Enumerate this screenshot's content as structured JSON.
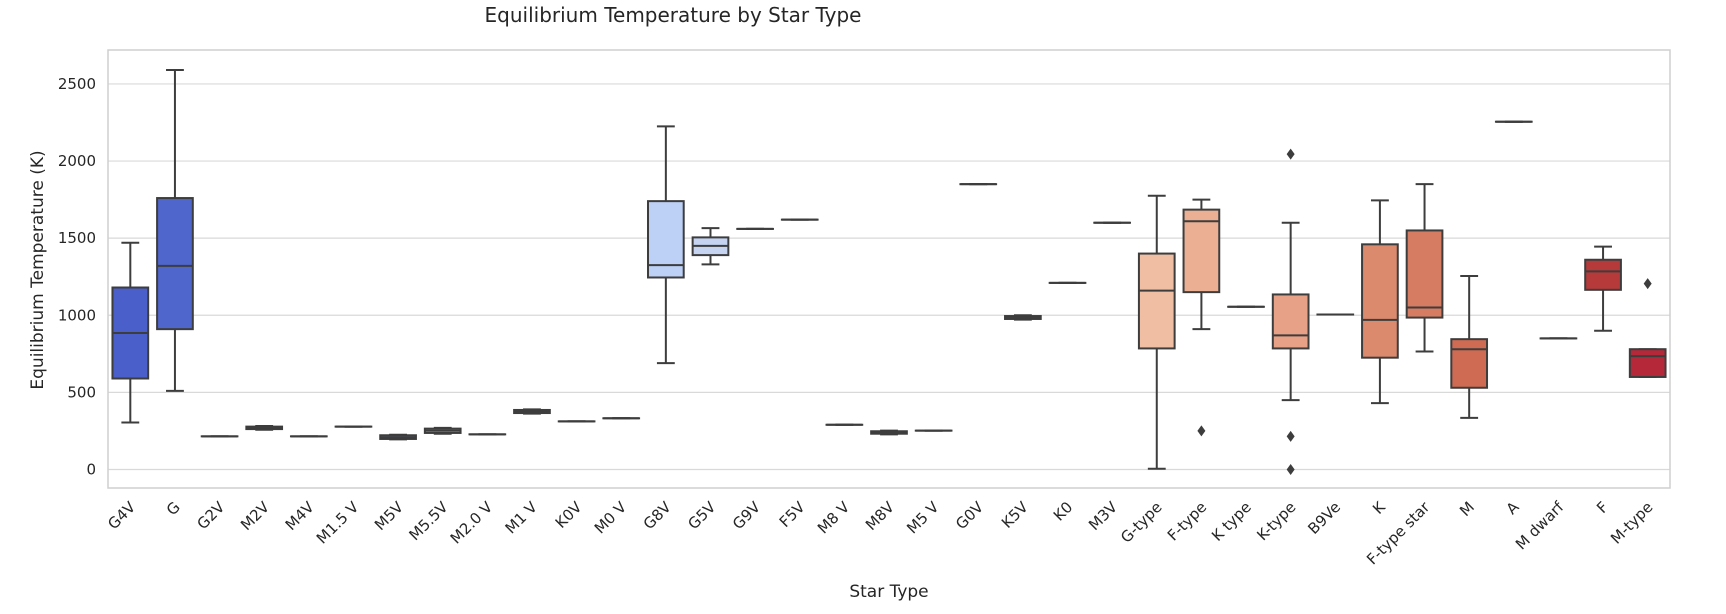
{
  "chart_data": {
    "type": "box",
    "title": "Equilibrium Temperature by Star Type",
    "xlabel": "Star Type",
    "ylabel": "Equilibrium Temperature (K)",
    "ylim": [
      -120,
      2720
    ],
    "yticks": [
      0,
      500,
      1000,
      1500,
      2000,
      2500
    ],
    "grid": "horizontal",
    "categories": [
      "G4V",
      "G",
      "G2V",
      "M2V",
      "M4V",
      "M1.5 V",
      "M5V",
      "M5.5V",
      "M2.0 V",
      "M1 V",
      "K0V",
      "M0 V",
      "G8V",
      "G5V",
      "G9V",
      "F5V",
      "M8 V",
      "M8V",
      "M5 V",
      "G0V",
      "K5V",
      "K0",
      "M3V",
      "G-type",
      "F-type",
      "K type",
      "K-type",
      "B9Ve",
      "K",
      "F-type star",
      "M",
      "A",
      "M dwarf",
      "F",
      "M-type"
    ],
    "colors": [
      "#4a5fc9",
      "#4f66cd",
      "#5a73d6",
      "#6580de",
      "#718de5",
      "#7d99ea",
      "#8aa6ef",
      "#97b1f3",
      "#a3bcf5",
      "#b0c6f6",
      "#bdcff6",
      "#c0cff3",
      "#bdd0f5",
      "#c6d4f2",
      "#cdd7ef",
      "#d4dbe9",
      "#dadde3",
      "#e2dbd6",
      "#e8d6ca",
      "#edcfbd",
      "#efc7b0",
      "#f0bfa2",
      "#efb496",
      "#efbea3",
      "#ebb093",
      "#e9a486",
      "#e6a186",
      "#e2957a",
      "#dc8a6e",
      "#d67c63",
      "#cf6b53",
      "#c65a47",
      "#bd483c",
      "#b73a3a",
      "#b5283a"
    ],
    "boxes": [
      {
        "min": 305,
        "q1": 590,
        "median": 885,
        "q3": 1180,
        "max": 1470,
        "outliers": []
      },
      {
        "min": 510,
        "q1": 910,
        "median": 1320,
        "q3": 1760,
        "max": 2590,
        "outliers": []
      },
      {
        "min": 215,
        "q1": 215,
        "median": 215,
        "q3": 215,
        "max": 215,
        "outliers": []
      },
      {
        "min": 258,
        "q1": 262,
        "median": 270,
        "q3": 278,
        "max": 282,
        "outliers": []
      },
      {
        "min": 215,
        "q1": 215,
        "median": 215,
        "q3": 215,
        "max": 215,
        "outliers": []
      },
      {
        "min": 278,
        "q1": 278,
        "median": 278,
        "q3": 278,
        "max": 278,
        "outliers": []
      },
      {
        "min": 195,
        "q1": 198,
        "median": 210,
        "q3": 222,
        "max": 225,
        "outliers": []
      },
      {
        "min": 232,
        "q1": 237,
        "median": 252,
        "q3": 265,
        "max": 270,
        "outliers": []
      },
      {
        "min": 228,
        "q1": 228,
        "median": 228,
        "q3": 228,
        "max": 228,
        "outliers": []
      },
      {
        "min": 362,
        "q1": 366,
        "median": 376,
        "q3": 386,
        "max": 390,
        "outliers": []
      },
      {
        "min": 312,
        "q1": 312,
        "median": 312,
        "q3": 312,
        "max": 312,
        "outliers": []
      },
      {
        "min": 332,
        "q1": 332,
        "median": 332,
        "q3": 332,
        "max": 332,
        "outliers": []
      },
      {
        "min": 690,
        "q1": 1245,
        "median": 1325,
        "q3": 1740,
        "max": 2225,
        "outliers": []
      },
      {
        "min": 1330,
        "q1": 1390,
        "median": 1450,
        "q3": 1505,
        "max": 1565,
        "outliers": []
      },
      {
        "min": 1560,
        "q1": 1560,
        "median": 1560,
        "q3": 1560,
        "max": 1560,
        "outliers": []
      },
      {
        "min": 1620,
        "q1": 1620,
        "median": 1620,
        "q3": 1620,
        "max": 1620,
        "outliers": []
      },
      {
        "min": 290,
        "q1": 290,
        "median": 290,
        "q3": 290,
        "max": 290,
        "outliers": []
      },
      {
        "min": 228,
        "q1": 232,
        "median": 240,
        "q3": 248,
        "max": 252,
        "outliers": []
      },
      {
        "min": 252,
        "q1": 252,
        "median": 252,
        "q3": 252,
        "max": 252,
        "outliers": []
      },
      {
        "min": 1850,
        "q1": 1850,
        "median": 1850,
        "q3": 1850,
        "max": 1850,
        "outliers": []
      },
      {
        "min": 972,
        "q1": 976,
        "median": 985,
        "q3": 995,
        "max": 1000,
        "outliers": []
      },
      {
        "min": 1210,
        "q1": 1210,
        "median": 1210,
        "q3": 1210,
        "max": 1210,
        "outliers": []
      },
      {
        "min": 1600,
        "q1": 1600,
        "median": 1600,
        "q3": 1600,
        "max": 1600,
        "outliers": []
      },
      {
        "min": 5,
        "q1": 785,
        "median": 1160,
        "q3": 1400,
        "max": 1775,
        "outliers": []
      },
      {
        "min": 910,
        "q1": 1150,
        "median": 1610,
        "q3": 1685,
        "max": 1750,
        "outliers": [
          250
        ]
      },
      {
        "min": 1055,
        "q1": 1055,
        "median": 1055,
        "q3": 1055,
        "max": 1055,
        "outliers": []
      },
      {
        "min": 450,
        "q1": 785,
        "median": 870,
        "q3": 1135,
        "max": 1600,
        "outliers": [
          2045,
          215,
          0
        ]
      },
      {
        "min": 1005,
        "q1": 1005,
        "median": 1005,
        "q3": 1005,
        "max": 1005,
        "outliers": []
      },
      {
        "min": 430,
        "q1": 725,
        "median": 970,
        "q3": 1460,
        "max": 1745,
        "outliers": []
      },
      {
        "min": 765,
        "q1": 985,
        "median": 1050,
        "q3": 1550,
        "max": 1850,
        "outliers": []
      },
      {
        "min": 335,
        "q1": 530,
        "median": 780,
        "q3": 845,
        "max": 1255,
        "outliers": []
      },
      {
        "min": 2255,
        "q1": 2255,
        "median": 2255,
        "q3": 2255,
        "max": 2255,
        "outliers": []
      },
      {
        "min": 850,
        "q1": 850,
        "median": 850,
        "q3": 850,
        "max": 850,
        "outliers": []
      },
      {
        "min": 900,
        "q1": 1165,
        "median": 1285,
        "q3": 1360,
        "max": 1445,
        "outliers": []
      },
      {
        "min": 600,
        "q1": 600,
        "median": 735,
        "q3": 780,
        "max": 780,
        "outliers": [
          1205
        ]
      }
    ]
  }
}
